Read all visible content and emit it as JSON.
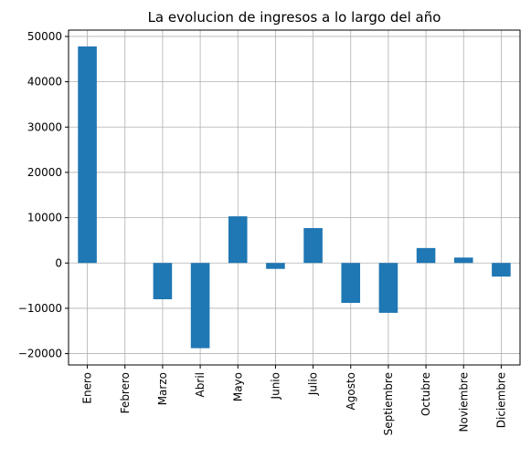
{
  "chart_data": {
    "type": "bar",
    "title": "La evolucion de ingresos a lo largo del año",
    "xlabel": "",
    "ylabel": "",
    "categories": [
      "Enero",
      "Febrero",
      "Marzo",
      "Abril",
      "Mayo",
      "Junio",
      "Julio",
      "Agosto",
      "Septiembre",
      "Octubre",
      "Noviembre",
      "Diciembre"
    ],
    "values": [
      47800,
      0,
      -8000,
      -18800,
      10300,
      -1300,
      7700,
      -8800,
      -11000,
      3300,
      1200,
      -3000
    ],
    "ylim": [
      -22500,
      51400
    ],
    "yticks": [
      -20000,
      -10000,
      0,
      10000,
      20000,
      30000,
      40000,
      50000
    ],
    "ytick_labels": [
      "−20000",
      "−10000",
      "0",
      "10000",
      "20000",
      "30000",
      "40000",
      "50000"
    ],
    "grid": true,
    "bar_color": "#1f77b4",
    "grid_color": "#b0b0b0"
  }
}
